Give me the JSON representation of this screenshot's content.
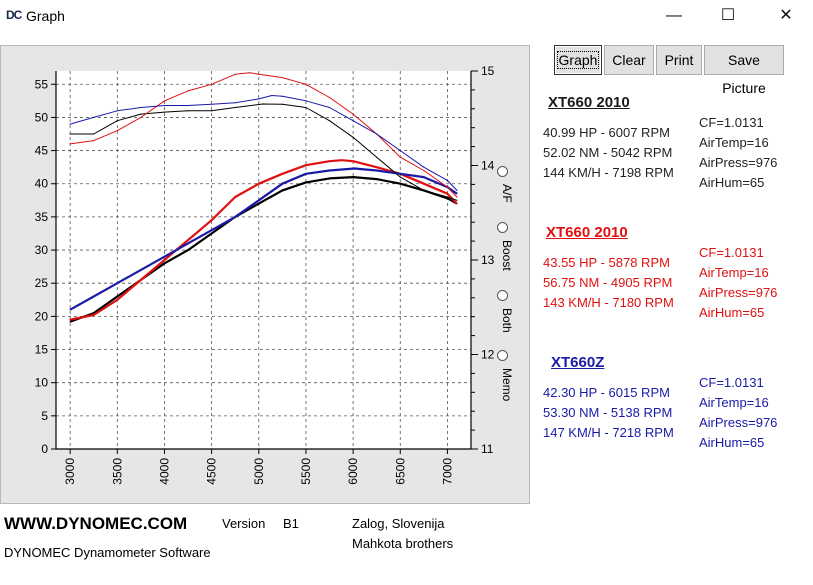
{
  "window": {
    "icon_text": "DC",
    "title": "Graph",
    "minimize": "—",
    "maximize": "☐",
    "close": "✕"
  },
  "toolbar": {
    "graph": "Graph",
    "clear": "Clear",
    "print": "Print",
    "save": "Save Picture"
  },
  "options": {
    "af": "A/F",
    "boost": "Boost",
    "both": "Both",
    "memo": "Memo"
  },
  "runs": [
    {
      "title": "XT660 2010",
      "color": "#000000",
      "hp": "40.99 HP - 6007 RPM",
      "nm": "52.02 NM - 5042 RPM",
      "kmh": "144 KM/H - 7198 RPM",
      "cf": "CF=1.0131",
      "airtemp": "AirTemp=16",
      "airpress": "AirPress=976",
      "airhum": "AirHum=65"
    },
    {
      "title": "XT660 2010",
      "color": "#e01010",
      "hp": "43.55 HP - 5878 RPM",
      "nm": "56.75 NM - 4905 RPM",
      "kmh": "143 KM/H - 7180 RPM",
      "cf": "CF=1.0131",
      "airtemp": "AirTemp=16",
      "airpress": "AirPress=976",
      "airhum": "AirHum=65"
    },
    {
      "title": "XT660Z",
      "color": "#1a1aa8",
      "hp": "42.30 HP - 6015 RPM",
      "nm": "53.30 NM - 5138 RPM",
      "kmh": "147 KM/H - 7218 RPM",
      "cf": "CF=1.0131",
      "airtemp": "AirTemp=16",
      "airpress": "AirPress=976",
      "airhum": "AirHum=65"
    }
  ],
  "footer": {
    "website": "WWW.DYNOMEC.COM",
    "version_label": "Version",
    "version": "B1",
    "location": "Zalog, Slovenija",
    "software": "DYNOMEC Dynamometer Software",
    "owner": "Mahkota brothers"
  },
  "chart_data": {
    "type": "line",
    "x_ticks": [
      "3000",
      "3500",
      "4000",
      "4500",
      "5000",
      "5500",
      "6000",
      "6500",
      "7000"
    ],
    "xlim": [
      2850,
      7250
    ],
    "y_ticks": [
      "0",
      "5",
      "10",
      "15",
      "20",
      "25",
      "30",
      "35",
      "40",
      "45",
      "50",
      "55"
    ],
    "ylim": [
      0,
      57
    ],
    "y2_ticks": [
      "11",
      "12",
      "13",
      "14",
      "15"
    ],
    "y2lim": [
      11,
      15
    ],
    "grid": true,
    "series": [
      {
        "group": "hp",
        "color": "#000000",
        "width": 2.2,
        "x": [
          3000,
          3250,
          3500,
          3750,
          4000,
          4250,
          4500,
          4750,
          5000,
          5250,
          5500,
          5750,
          6000,
          6250,
          6500,
          6750,
          7000,
          7100
        ],
        "y": [
          19.2,
          20.5,
          23,
          25.5,
          28,
          30,
          32.5,
          35,
          37,
          39,
          40.2,
          40.8,
          41,
          40.7,
          40,
          39,
          37.8,
          37
        ]
      },
      {
        "group": "hp",
        "color": "#e01010",
        "width": 2.2,
        "x": [
          3000,
          3250,
          3500,
          3750,
          4000,
          4250,
          4500,
          4750,
          5000,
          5250,
          5500,
          5750,
          5880,
          6000,
          6250,
          6500,
          6750,
          7000,
          7100
        ],
        "y": [
          19.5,
          20.2,
          22.5,
          25.5,
          28.5,
          31.5,
          34.5,
          38,
          40,
          41.5,
          42.8,
          43.4,
          43.55,
          43.4,
          42.5,
          41.5,
          40,
          38.5,
          37
        ]
      },
      {
        "group": "hp",
        "color": "#1a1aa8",
        "width": 2.2,
        "x": [
          3000,
          3250,
          3500,
          3750,
          4000,
          4250,
          4500,
          4750,
          5000,
          5250,
          5500,
          5750,
          6015,
          6250,
          6500,
          6750,
          7000,
          7100
        ],
        "y": [
          21,
          23,
          25,
          27,
          29,
          31,
          33,
          35,
          37.5,
          40,
          41.5,
          42,
          42.3,
          42,
          41.5,
          41,
          39.5,
          38.5
        ]
      },
      {
        "group": "nm",
        "color": "#000000",
        "width": 1,
        "x": [
          3000,
          3250,
          3500,
          3750,
          4000,
          4250,
          4500,
          4750,
          5042,
          5250,
          5500,
          5750,
          6000,
          6250,
          6500,
          6750,
          7000,
          7100
        ],
        "y": [
          47.5,
          47.5,
          49.5,
          50.5,
          50.8,
          51,
          51,
          51.5,
          52.02,
          52,
          51.5,
          49.5,
          47,
          44,
          41,
          39,
          38,
          37.5
        ]
      },
      {
        "group": "nm",
        "color": "#e01010",
        "width": 1,
        "x": [
          3000,
          3250,
          3500,
          3750,
          4000,
          4250,
          4500,
          4750,
          4905,
          5000,
          5250,
          5500,
          5750,
          6000,
          6250,
          6500,
          6750,
          7000,
          7100
        ],
        "y": [
          46,
          46.5,
          48,
          50,
          52.5,
          54,
          55,
          56.5,
          56.75,
          56.5,
          56,
          55,
          53,
          50.5,
          47.5,
          44,
          42,
          39.5,
          38
        ]
      },
      {
        "group": "nm",
        "color": "#1a1aa8",
        "width": 1,
        "x": [
          3000,
          3250,
          3500,
          3750,
          4000,
          4250,
          4500,
          4750,
          5000,
          5138,
          5250,
          5500,
          5750,
          6000,
          6250,
          6500,
          6750,
          7000,
          7100
        ],
        "y": [
          49,
          50,
          51,
          51.5,
          51.8,
          51.8,
          52,
          52.2,
          52.8,
          53.3,
          53.2,
          52.5,
          51.5,
          49.5,
          47.5,
          45,
          42.5,
          40.5,
          39
        ]
      }
    ]
  }
}
